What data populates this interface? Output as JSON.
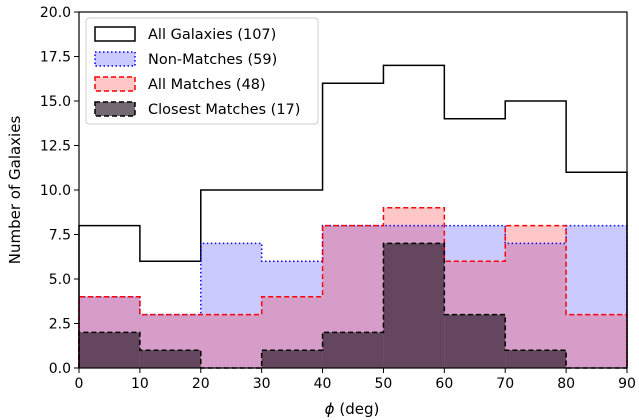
{
  "chart_data": {
    "type": "histogram",
    "xlabel_prefix": "ϕ",
    "xlabel_suffix": " (deg)",
    "ylabel": "Number of Galaxies",
    "xlim": [
      0,
      90
    ],
    "ylim": [
      0,
      20
    ],
    "bin_edges": [
      0,
      10,
      20,
      30,
      40,
      50,
      60,
      70,
      80,
      90
    ],
    "x_ticks": [
      "0",
      "10",
      "20",
      "30",
      "40",
      "50",
      "60",
      "70",
      "80",
      "90"
    ],
    "y_ticks": [
      "0.0",
      "2.5",
      "5.0",
      "7.5",
      "10.0",
      "12.5",
      "15.0",
      "17.5",
      "20.0"
    ],
    "legend_position": "upper-left",
    "series": [
      {
        "name": "All Galaxies (107)",
        "values": [
          8,
          6,
          10,
          10,
          16,
          17,
          14,
          15,
          11
        ],
        "fill": "none",
        "stroke": "#000000",
        "dash": "solid"
      },
      {
        "name": "Non-Matches (59)",
        "values": [
          4,
          3,
          7,
          6,
          8,
          8,
          8,
          7,
          8
        ],
        "fill": "rgba(80,80,255,0.30)",
        "stroke": "#0000ff",
        "dash": "dotted"
      },
      {
        "name": "All Matches (48)",
        "values": [
          4,
          3,
          3,
          4,
          8,
          9,
          6,
          8,
          3
        ],
        "fill": "rgba(255,0,0,0.22)",
        "stroke": "#ff0000",
        "dash": "dashed"
      },
      {
        "name": "Closest Matches (17)",
        "values": [
          2,
          1,
          0,
          1,
          2,
          7,
          3,
          1,
          0
        ],
        "fill": "rgba(40,25,40,0.65)",
        "stroke": "#000000",
        "dash": "dashed"
      }
    ]
  }
}
